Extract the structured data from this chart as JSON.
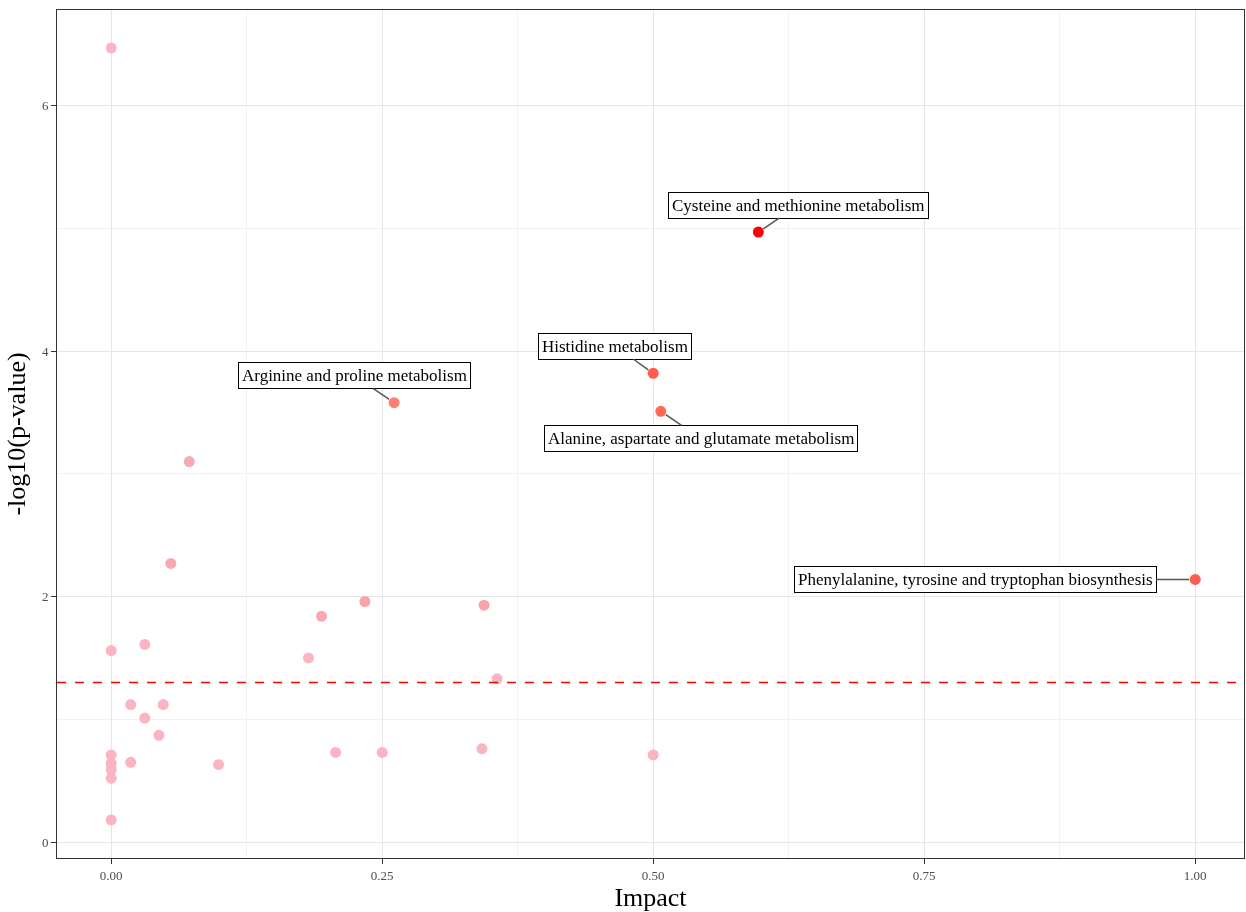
{
  "chart_data": {
    "type": "scatter",
    "xlabel": "Impact",
    "ylabel": "-log10(p-value)",
    "x": [
      0,
      0.597,
      0.5,
      0.507,
      0.261,
      0.072,
      1.0,
      0.055,
      0.234,
      0.344,
      0.194,
      0.031,
      0,
      0.182,
      0.356,
      0.018,
      0.048,
      0.031,
      0.044,
      0,
      0,
      0,
      0,
      0.018,
      0.099,
      0.207,
      0.25,
      0.342,
      0.5,
      0
    ],
    "values": [
      6.47,
      4.97,
      3.82,
      3.51,
      3.58,
      3.1,
      2.14,
      2.27,
      1.96,
      1.93,
      1.84,
      1.61,
      1.56,
      1.5,
      1.33,
      1.12,
      1.12,
      1.01,
      0.87,
      0.71,
      0.64,
      0.59,
      0.52,
      0.65,
      0.63,
      0.73,
      0.73,
      0.76,
      0.71,
      0.18
    ],
    "colors": [
      "#fbb4c1",
      "#ff0000",
      "#ff5c4d",
      "#ff6a55",
      "#ff7f70",
      "#f9a9b3",
      "#ff5c4d",
      "#f9a9b3",
      "#f9a3ab",
      "#f9a3ab",
      "#f9a9b3",
      "#fbb4c1",
      "#fbb4c1",
      "#fbb4c1",
      "#fbb4c1",
      "#fbb4c1",
      "#fbb4c1",
      "#fbb4c1",
      "#fbb4c1",
      "#fbb4c1",
      "#fbb4c1",
      "#fbb4c1",
      "#fbb4c1",
      "#fbb4c1",
      "#fbb4c1",
      "#fbb4c1",
      "#fbb4c1",
      "#fbb4c1",
      "#fbb4c1",
      "#fbb4c1"
    ],
    "xlim": [
      -0.05,
      1.045
    ],
    "ylim": [
      -0.13,
      6.78
    ],
    "xticks": [
      {
        "value": 0,
        "label": "0.00"
      },
      {
        "value": 0.25,
        "label": "0.25"
      },
      {
        "value": 0.5,
        "label": "0.50"
      },
      {
        "value": 0.75,
        "label": "0.75"
      },
      {
        "value": 1,
        "label": "1.00"
      }
    ],
    "yticks": [
      0,
      2,
      4,
      6
    ],
    "grid": true,
    "ref_lines": [
      {
        "axis": "y",
        "value": 1.3,
        "color": "#ff0000",
        "line_style": "dashed"
      }
    ],
    "annotations": [
      {
        "text": "Cysteine and methionine metabolism",
        "x": 0.597,
        "y": 4.97
      },
      {
        "text": "Histidine metabolism",
        "x": 0.5,
        "y": 3.82
      },
      {
        "text": "Alanine, aspartate and glutamate metabolism",
        "x": 0.507,
        "y": 3.51
      },
      {
        "text": "Arginine and proline metabolism",
        "x": 0.261,
        "y": 3.58
      },
      {
        "text": "Phenylalanine, tyrosine and tryptophan biosynthesis",
        "x": 1.0,
        "y": 2.14
      }
    ]
  }
}
